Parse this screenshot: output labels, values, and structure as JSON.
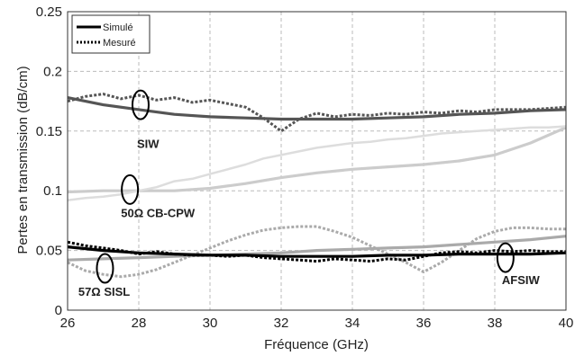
{
  "chart_data": {
    "type": "line",
    "xlabel": "Fréquence (GHz)",
    "ylabel": "Pertes en transmission (dB/cm)",
    "xlim": [
      26,
      40
    ],
    "ylim": [
      0,
      0.25
    ],
    "x_ticks": [
      "26",
      "28",
      "30",
      "32",
      "34",
      "36",
      "38",
      "40"
    ],
    "y_ticks": [
      "0",
      "0.05",
      "0.1",
      "0.15",
      "0.2",
      "0.25"
    ],
    "grid": true,
    "legend": {
      "placement": "top-left",
      "entries": [
        {
          "label": "Simulé",
          "style": "solid"
        },
        {
          "label": "Mesuré",
          "style": "dotted"
        }
      ]
    },
    "annotations": [
      {
        "label": "SIW",
        "x": 27.95,
        "y": 0.136,
        "ellipse": [
          28.05,
          0.172
        ]
      },
      {
        "label": "50Ω CB-CPW",
        "x": 27.5,
        "y": 0.078,
        "ellipse": [
          27.75,
          0.101
        ]
      },
      {
        "label": "57Ω SISL",
        "x": 26.3,
        "y": 0.012,
        "ellipse": [
          27.05,
          0.035
        ]
      },
      {
        "label": "AFSIW",
        "x": 38.2,
        "y": 0.022,
        "ellipse": [
          38.3,
          0.044
        ]
      }
    ],
    "series": [
      {
        "style": "solid",
        "color": "#555555",
        "x": [
          26,
          27,
          28,
          29,
          30,
          31,
          32,
          33,
          34,
          35,
          36,
          37,
          38,
          39,
          40
        ],
        "y": [
          0.178,
          0.172,
          0.168,
          0.164,
          0.162,
          0.161,
          0.16,
          0.16,
          0.16,
          0.161,
          0.162,
          0.164,
          0.165,
          0.167,
          0.168
        ]
      },
      {
        "style": "dotted",
        "color": "#555555",
        "x": [
          26,
          26.5,
          27,
          27.5,
          28,
          28.5,
          29,
          29.5,
          30,
          30.5,
          31,
          31.5,
          32,
          32.5,
          33,
          33.5,
          34,
          34.5,
          35,
          35.5,
          36,
          36.5,
          37,
          37.5,
          38,
          38.5,
          39,
          39.5,
          40
        ],
        "y": [
          0.175,
          0.179,
          0.181,
          0.177,
          0.18,
          0.176,
          0.178,
          0.174,
          0.176,
          0.173,
          0.17,
          0.161,
          0.15,
          0.16,
          0.165,
          0.162,
          0.164,
          0.163,
          0.165,
          0.164,
          0.166,
          0.165,
          0.167,
          0.166,
          0.168,
          0.168,
          0.168,
          0.169,
          0.17
        ]
      },
      {
        "style": "solid",
        "color": "#cccccc",
        "x": [
          26,
          27,
          28,
          29,
          30,
          31,
          32,
          33,
          34,
          35,
          36,
          37,
          38,
          39,
          40
        ],
        "y": [
          0.099,
          0.1,
          0.1,
          0.1,
          0.102,
          0.106,
          0.111,
          0.115,
          0.118,
          0.12,
          0.122,
          0.125,
          0.13,
          0.14,
          0.153
        ]
      },
      {
        "style": "solid-jagged",
        "color": "#dddddd",
        "x": [
          26,
          26.5,
          27,
          27.5,
          28,
          28.5,
          29,
          29.5,
          30,
          30.5,
          31,
          31.5,
          32,
          32.5,
          33,
          33.5,
          34,
          34.5,
          35,
          35.5,
          36,
          36.5,
          37,
          37.5,
          38,
          38.5,
          39,
          39.5,
          40
        ],
        "y": [
          0.092,
          0.094,
          0.095,
          0.097,
          0.1,
          0.103,
          0.108,
          0.11,
          0.114,
          0.118,
          0.122,
          0.127,
          0.13,
          0.133,
          0.136,
          0.138,
          0.14,
          0.141,
          0.143,
          0.144,
          0.146,
          0.148,
          0.149,
          0.15,
          0.151,
          0.152,
          0.153,
          0.153,
          0.154
        ]
      },
      {
        "style": "solid",
        "color": "#aaaaaa",
        "x": [
          26,
          27,
          28,
          29,
          30,
          31,
          32,
          33,
          34,
          35,
          36,
          37,
          38,
          39,
          40
        ],
        "y": [
          0.042,
          0.043,
          0.044,
          0.045,
          0.046,
          0.047,
          0.048,
          0.05,
          0.051,
          0.052,
          0.053,
          0.055,
          0.057,
          0.059,
          0.062
        ]
      },
      {
        "style": "dotted",
        "color": "#aaaaaa",
        "x": [
          26,
          26.5,
          27,
          27.5,
          28,
          28.5,
          29,
          29.5,
          30,
          30.5,
          31,
          31.5,
          32,
          32.5,
          33,
          33.5,
          34,
          34.5,
          35,
          35.5,
          36,
          36.5,
          37,
          37.5,
          38,
          38.5,
          39,
          39.5,
          40
        ],
        "y": [
          0.04,
          0.033,
          0.03,
          0.028,
          0.03,
          0.034,
          0.04,
          0.046,
          0.052,
          0.058,
          0.063,
          0.067,
          0.069,
          0.07,
          0.07,
          0.066,
          0.061,
          0.054,
          0.047,
          0.04,
          0.032,
          0.04,
          0.05,
          0.06,
          0.066,
          0.069,
          0.069,
          0.068,
          0.068
        ]
      },
      {
        "style": "solid",
        "color": "#000000",
        "x": [
          26,
          27,
          28,
          29,
          30,
          31,
          32,
          33,
          34,
          35,
          36,
          37,
          38,
          39,
          40
        ],
        "y": [
          0.053,
          0.05,
          0.048,
          0.047,
          0.046,
          0.046,
          0.045,
          0.045,
          0.045,
          0.046,
          0.046,
          0.047,
          0.047,
          0.047,
          0.048
        ]
      },
      {
        "style": "dotted",
        "color": "#000000",
        "x": [
          26,
          26.5,
          27,
          27.5,
          28,
          28.5,
          29,
          29.5,
          30,
          30.5,
          31,
          31.5,
          32,
          32.5,
          33,
          33.5,
          34,
          34.5,
          35,
          35.5,
          36,
          36.5,
          37,
          37.5,
          38,
          38.5,
          39,
          39.5,
          40
        ],
        "y": [
          0.057,
          0.054,
          0.052,
          0.05,
          0.047,
          0.049,
          0.047,
          0.046,
          0.046,
          0.045,
          0.046,
          0.044,
          0.043,
          0.042,
          0.041,
          0.043,
          0.042,
          0.041,
          0.043,
          0.042,
          0.045,
          0.048,
          0.049,
          0.048,
          0.05,
          0.049,
          0.05,
          0.049,
          0.049
        ]
      }
    ]
  }
}
